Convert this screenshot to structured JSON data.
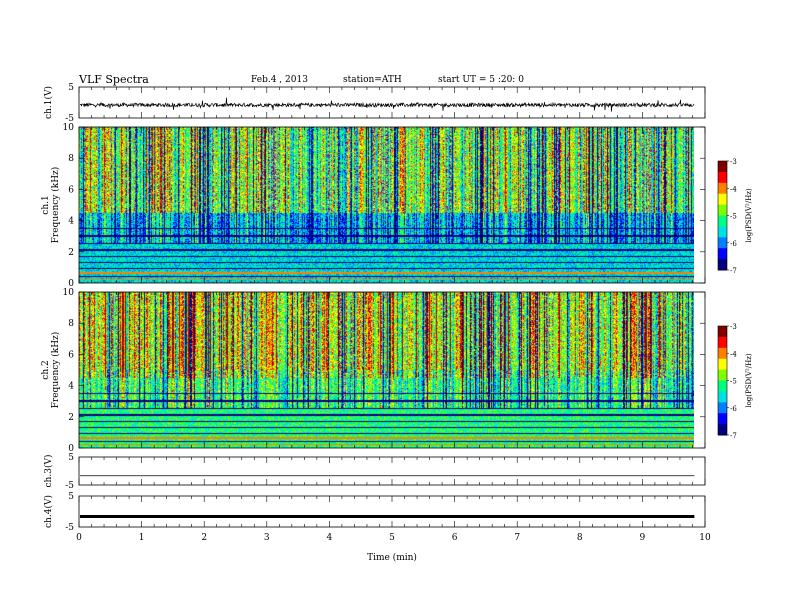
{
  "header": {
    "title": "VLF Spectra",
    "date": "Feb.4 , 2013",
    "station": "station=ATH",
    "start_ut": "start UT =  5 :20: 0"
  },
  "chart_data": [
    {
      "type": "line",
      "panel": "ch1-waveform",
      "ylabel": "ch.1(V)",
      "ylim": [
        -5,
        5
      ],
      "y_ticks": [
        "5",
        "-5"
      ],
      "xlim": [
        0,
        10
      ],
      "series": [
        {
          "values_note_level": -0.8
        }
      ]
    },
    {
      "type": "heatmap",
      "panel": "ch1-spectrogram",
      "ylabel": "ch.1 Frequency (kHz)",
      "ylim": [
        0,
        10
      ],
      "y_ticks": [
        "0",
        "2",
        "4",
        "6",
        "8",
        "10"
      ],
      "xlim": [
        0,
        9.83
      ],
      "colorbar": {
        "label": "log(PSD(V²/Hz)",
        "range": [
          -7,
          -3
        ],
        "ticks": [
          "-3",
          "-4",
          "-5",
          "-6",
          "-7"
        ]
      }
    },
    {
      "type": "heatmap",
      "panel": "ch2-spectrogram",
      "ylabel": "ch.2 Frequency (kHz)",
      "ylim": [
        0,
        10
      ],
      "y_ticks": [
        "0",
        "2",
        "4",
        "6",
        "8",
        "10"
      ],
      "xlim": [
        0,
        9.83
      ],
      "colorbar": {
        "label": "log(PSD(V²/Hz)",
        "range": [
          -7,
          -3
        ],
        "ticks": [
          "-3",
          "-4",
          "-5",
          "-6",
          "-7"
        ]
      }
    },
    {
      "type": "line",
      "panel": "ch3-waveform",
      "ylabel": "ch.3(V)",
      "ylim": [
        -5,
        5
      ],
      "y_ticks": [
        "5",
        "-5"
      ],
      "series": [
        {
          "level": -1.7
        }
      ]
    },
    {
      "type": "line",
      "panel": "ch4-waveform",
      "ylabel": "ch.4(V)",
      "ylim": [
        -5,
        5
      ],
      "y_ticks": [
        "5",
        "-5"
      ],
      "series": [
        {
          "level": -1.6
        }
      ]
    }
  ],
  "xaxis": {
    "label": "Time (min)",
    "range": [
      0,
      10
    ],
    "ticks": [
      "0",
      "1",
      "2",
      "3",
      "4",
      "5",
      "6",
      "7",
      "8",
      "9",
      "10"
    ]
  },
  "colors": {
    "colormap": [
      "#000080",
      "#0000ff",
      "#0080ff",
      "#00e0e0",
      "#00ff80",
      "#80ff00",
      "#ffff00",
      "#ff8000",
      "#ff0000",
      "#800000"
    ]
  }
}
